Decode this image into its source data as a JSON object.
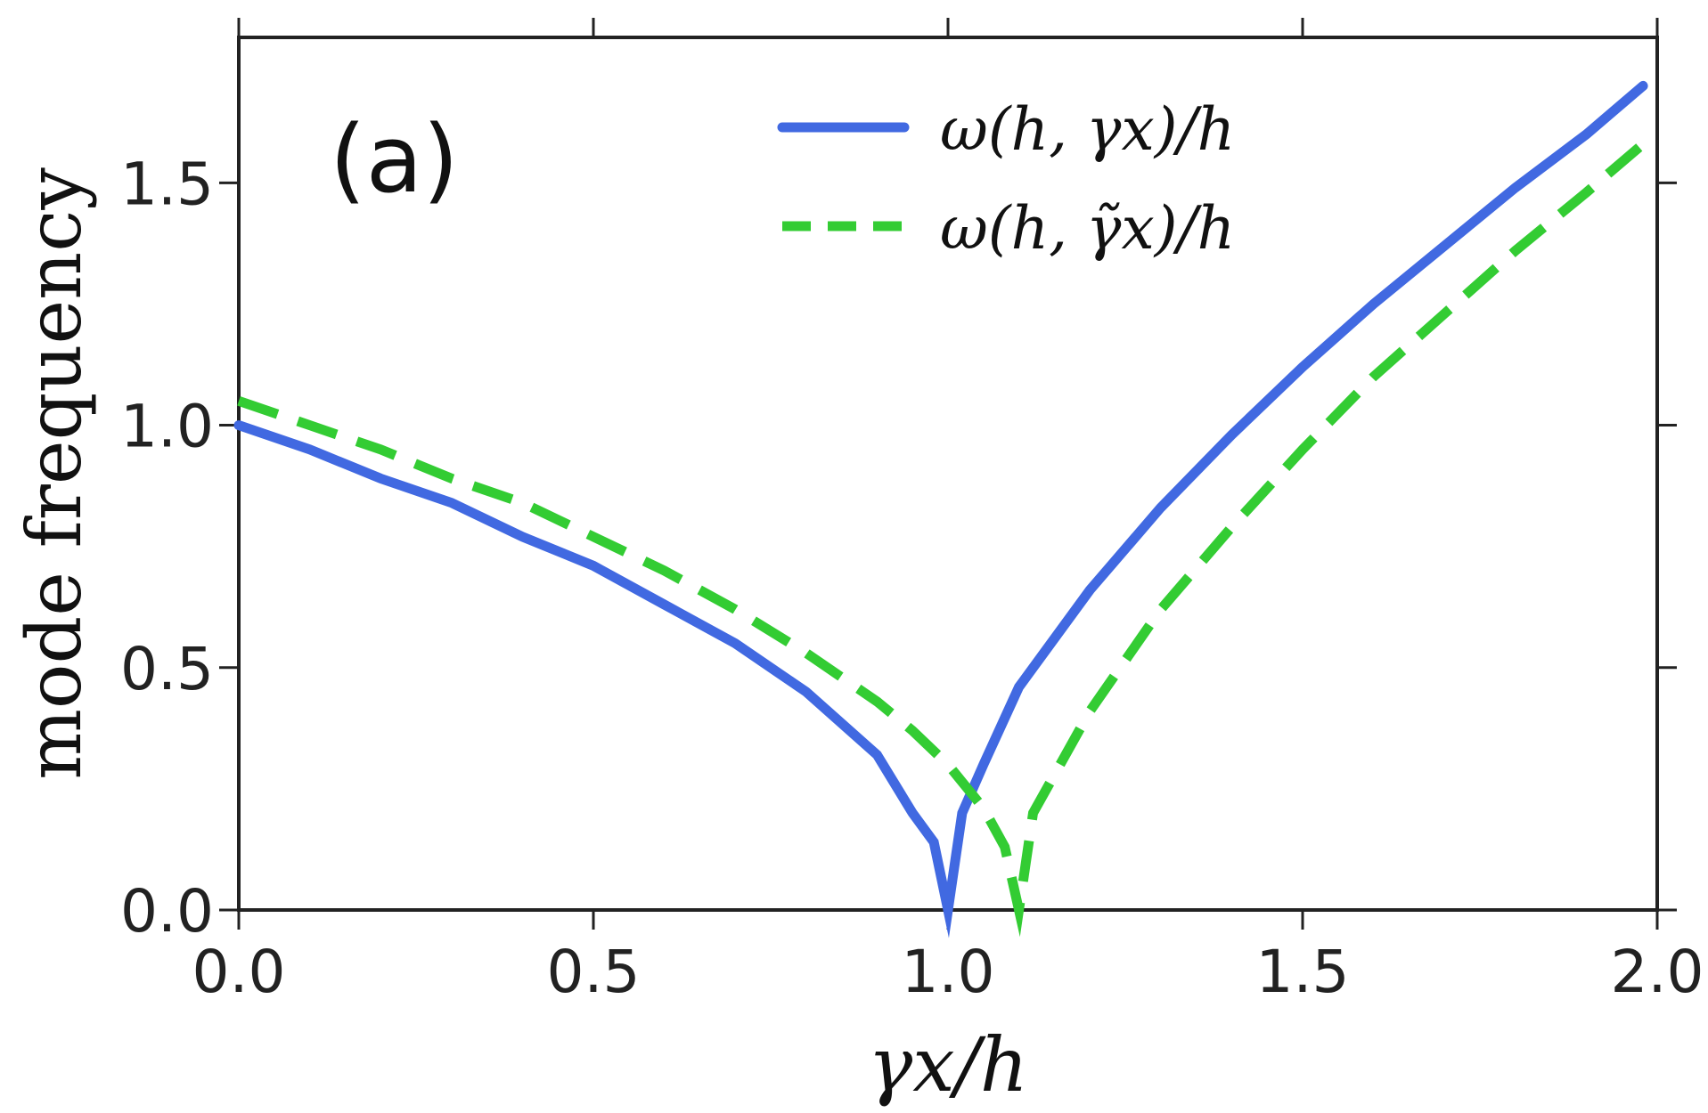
{
  "chart_data": {
    "type": "line",
    "panel_label": "(a)",
    "xlabel": "γx/h",
    "ylabel": "mode frequency",
    "xlim": [
      0.0,
      2.0
    ],
    "ylim": [
      0.0,
      1.8
    ],
    "xticks": [
      0.0,
      0.5,
      1.0,
      1.5,
      2.0
    ],
    "xtick_labels": [
      "0.0",
      "0.5",
      "1.0",
      "1.5",
      "2.0"
    ],
    "yticks": [
      0.0,
      0.5,
      1.0,
      1.5
    ],
    "ytick_labels": [
      "0.0",
      "0.5",
      "1.0",
      "1.5"
    ],
    "grid": false,
    "legend_position": "top-right",
    "series": [
      {
        "name": "ω(h, γx)/h",
        "color": "#4169e1",
        "style": "solid",
        "x": [
          0.0,
          0.1,
          0.2,
          0.3,
          0.4,
          0.5,
          0.6,
          0.7,
          0.8,
          0.9,
          0.95,
          0.98,
          1.0,
          1.02,
          1.05,
          1.1,
          1.2,
          1.3,
          1.4,
          1.5,
          1.6,
          1.7,
          1.8,
          1.9,
          1.98
        ],
        "y": [
          1.0,
          0.95,
          0.89,
          0.84,
          0.77,
          0.71,
          0.63,
          0.55,
          0.45,
          0.32,
          0.2,
          0.14,
          0.0,
          0.2,
          0.3,
          0.46,
          0.66,
          0.83,
          0.98,
          1.12,
          1.25,
          1.37,
          1.49,
          1.6,
          1.7
        ]
      },
      {
        "name": "ω(h, γ̃x)/h",
        "color": "#33cc33",
        "style": "dashed",
        "x": [
          0.0,
          0.1,
          0.2,
          0.3,
          0.4,
          0.5,
          0.6,
          0.7,
          0.8,
          0.9,
          0.95,
          1.0,
          1.05,
          1.08,
          1.1,
          1.12,
          1.2,
          1.3,
          1.4,
          1.5,
          1.6,
          1.7,
          1.8,
          1.9,
          1.98
        ],
        "y": [
          1.05,
          1.0,
          0.95,
          0.89,
          0.84,
          0.77,
          0.7,
          0.62,
          0.53,
          0.43,
          0.37,
          0.3,
          0.21,
          0.13,
          0.0,
          0.2,
          0.41,
          0.62,
          0.79,
          0.95,
          1.1,
          1.23,
          1.36,
          1.48,
          1.58
        ]
      }
    ]
  }
}
